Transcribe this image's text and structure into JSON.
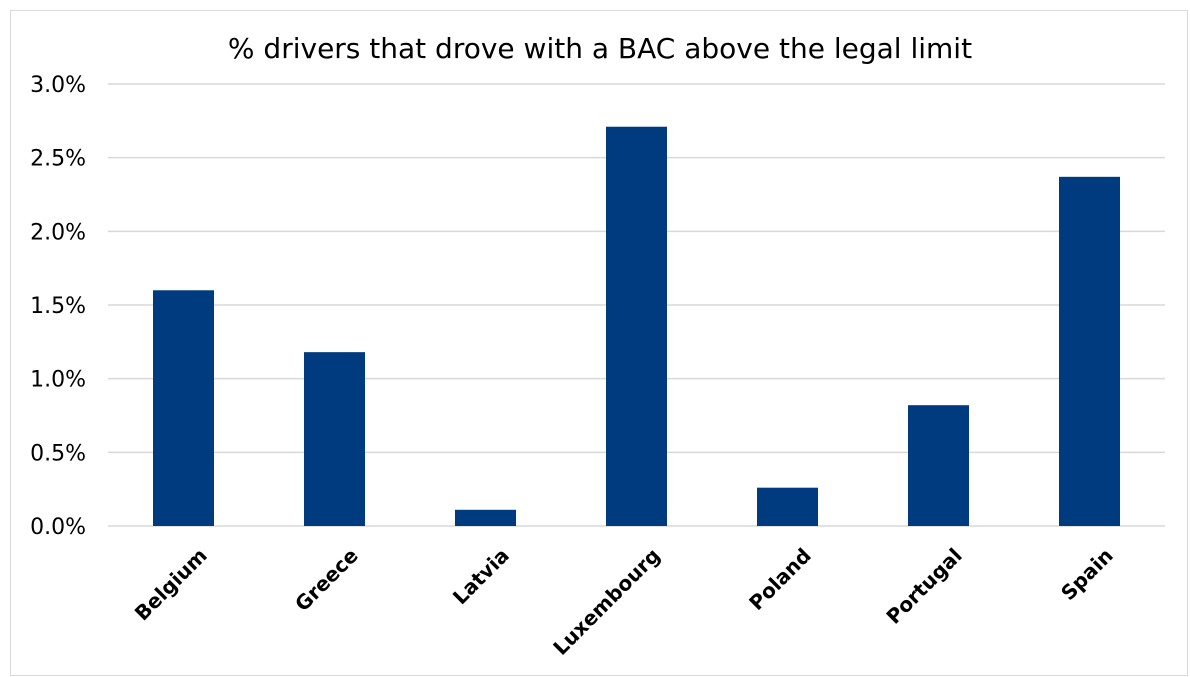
{
  "chart_data": {
    "type": "bar",
    "title": "% drivers that drove with a BAC above the legal limit",
    "xlabel": "",
    "ylabel": "",
    "categories": [
      "Belgium",
      "Greece",
      "Latvia",
      "Luxembourg",
      "Poland",
      "Portugal",
      "Spain"
    ],
    "values": [
      1.6,
      1.18,
      0.11,
      2.71,
      0.26,
      0.82,
      2.37
    ],
    "ylim": [
      0,
      3.0
    ],
    "yticks": [
      "0.0%",
      "0.5%",
      "1.0%",
      "1.5%",
      "2.0%",
      "2.5%",
      "3.0%"
    ],
    "ytick_values": [
      0,
      0.5,
      1.0,
      1.5,
      2.0,
      2.5,
      3.0
    ],
    "grid": true,
    "legend": "none",
    "bar_color": "#003B80"
  }
}
